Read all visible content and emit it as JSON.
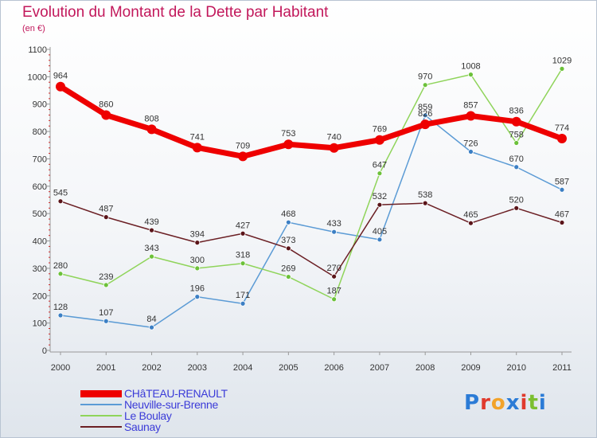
{
  "title": "Evolution du Montant de la Dette par Habitant",
  "subtitle": "(en €)",
  "brand": {
    "letters": [
      "P",
      "r",
      "o",
      "x",
      "i",
      "t",
      "i"
    ],
    "colors": [
      "#2b7bd6",
      "#e03a2d",
      "#f2a32a",
      "#2b7bd6",
      "#e03a2d",
      "#7cbf2f",
      "#2b7bd6"
    ]
  },
  "chart_data": {
    "type": "line",
    "x": [
      "2000",
      "2001",
      "2002",
      "2003",
      "2004",
      "2005",
      "2006",
      "2007",
      "2008",
      "2009",
      "2010",
      "2011"
    ],
    "ylim": [
      0,
      1100
    ],
    "yticks": [
      0,
      100,
      200,
      300,
      400,
      500,
      600,
      700,
      800,
      900,
      1000,
      1100
    ],
    "grid": false,
    "legend_position": "bottom-left",
    "series": [
      {
        "name": "CHâTEAU-RENAULT",
        "color": "#ee0000",
        "values": [
          964,
          860,
          808,
          741,
          709,
          753,
          740,
          769,
          826,
          857,
          836,
          774
        ],
        "labels": [
          "964",
          "860",
          "808",
          "741",
          "709",
          "753",
          "740",
          "769",
          "826",
          "857",
          "836",
          "774"
        ]
      },
      {
        "name": "Neuville-sur-Brenne",
        "color": "#5b9bd5",
        "values": [
          128,
          107,
          84,
          196,
          171,
          468,
          433,
          405,
          859,
          726,
          670,
          587
        ],
        "labels": [
          "128",
          "107",
          "84",
          "196",
          "171",
          "468",
          "433",
          "405",
          "859",
          "726",
          "670",
          "587"
        ]
      },
      {
        "name": "Le Boulay",
        "color": "#8fd45a",
        "values": [
          280,
          239,
          343,
          300,
          318,
          269,
          187,
          647,
          970,
          1008,
          758,
          1029
        ],
        "labels": [
          "280",
          "239",
          "343",
          "300",
          "318",
          "269",
          "187",
          "647",
          "970",
          "1008",
          "758",
          "1029"
        ]
      },
      {
        "name": "Saunay",
        "color": "#6b1f24",
        "values": [
          545,
          487,
          439,
          394,
          427,
          373,
          270,
          532,
          538,
          465,
          520,
          467
        ],
        "labels": [
          "545",
          "487",
          "439",
          "394",
          "427",
          "373",
          "270",
          "532",
          "538",
          "465",
          "520",
          "467"
        ]
      }
    ]
  }
}
